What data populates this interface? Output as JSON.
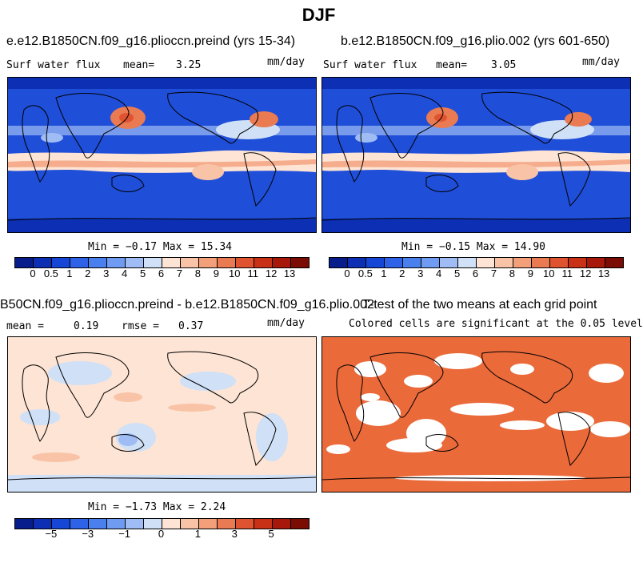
{
  "figure": {
    "title": "DJF"
  },
  "panels": {
    "p1": {
      "title": "e.e12.B1850CN.f09_g16.plioccn.preind (yrs 15-34)",
      "var_label": "Surf water flux",
      "mean_label": "mean=",
      "mean_value": "3.25",
      "units": "mm/day",
      "min_max": "Min = −0.17 Max = 15.34"
    },
    "p2": {
      "title": "b.e12.B1850CN.f09_g16.plio.002 (yrs 601-650)",
      "var_label": "Surf water flux",
      "mean_label": "mean=",
      "mean_value": "3.05",
      "units": "mm/day",
      "min_max": "Min = −0.15 Max = 14.90"
    },
    "p3": {
      "title": "B50CN.f09_g16.plioccn.preind - b.e12.B1850CN.f09_g16.plio.002",
      "mean_label": "mean =",
      "mean_value": "0.19",
      "rmse_label": "rmse =",
      "rmse_value": "0.37",
      "units": "mm/day",
      "min_max": "Min = −1.73 Max = 2.24"
    },
    "p4": {
      "title": "T-test of the two means at each grid point",
      "subtitle": "Colored cells are significant at the 0.05 level"
    }
  },
  "colorbars": {
    "absolute": {
      "colors": [
        "#081d8c",
        "#0c2fb4",
        "#1546d6",
        "#2e63e8",
        "#4a80ee",
        "#6f9cf2",
        "#9fbcf4",
        "#cfe0f7",
        "#fde4d4",
        "#f9c3a7",
        "#f29f7a",
        "#ea7a51",
        "#e05330",
        "#c93116",
        "#a8180a",
        "#7a0c04"
      ],
      "labels": [
        "0",
        "0.5",
        "1",
        "2",
        "3",
        "4",
        "5",
        "6",
        "7",
        "8",
        "9",
        "10",
        "11",
        "12",
        "13"
      ]
    },
    "difference": {
      "colors": [
        "#081d8c",
        "#0c2fb4",
        "#1546d6",
        "#2e63e8",
        "#4a80ee",
        "#6f9cf2",
        "#9fbcf4",
        "#cfe0f7",
        "#fde4d4",
        "#f9c3a7",
        "#f29f7a",
        "#ea7a51",
        "#e05330",
        "#c93116",
        "#a8180a",
        "#7a0c04"
      ],
      "labels": [
        "−5",
        "−3",
        "−1",
        "0",
        "1",
        "3",
        "5"
      ]
    }
  }
}
